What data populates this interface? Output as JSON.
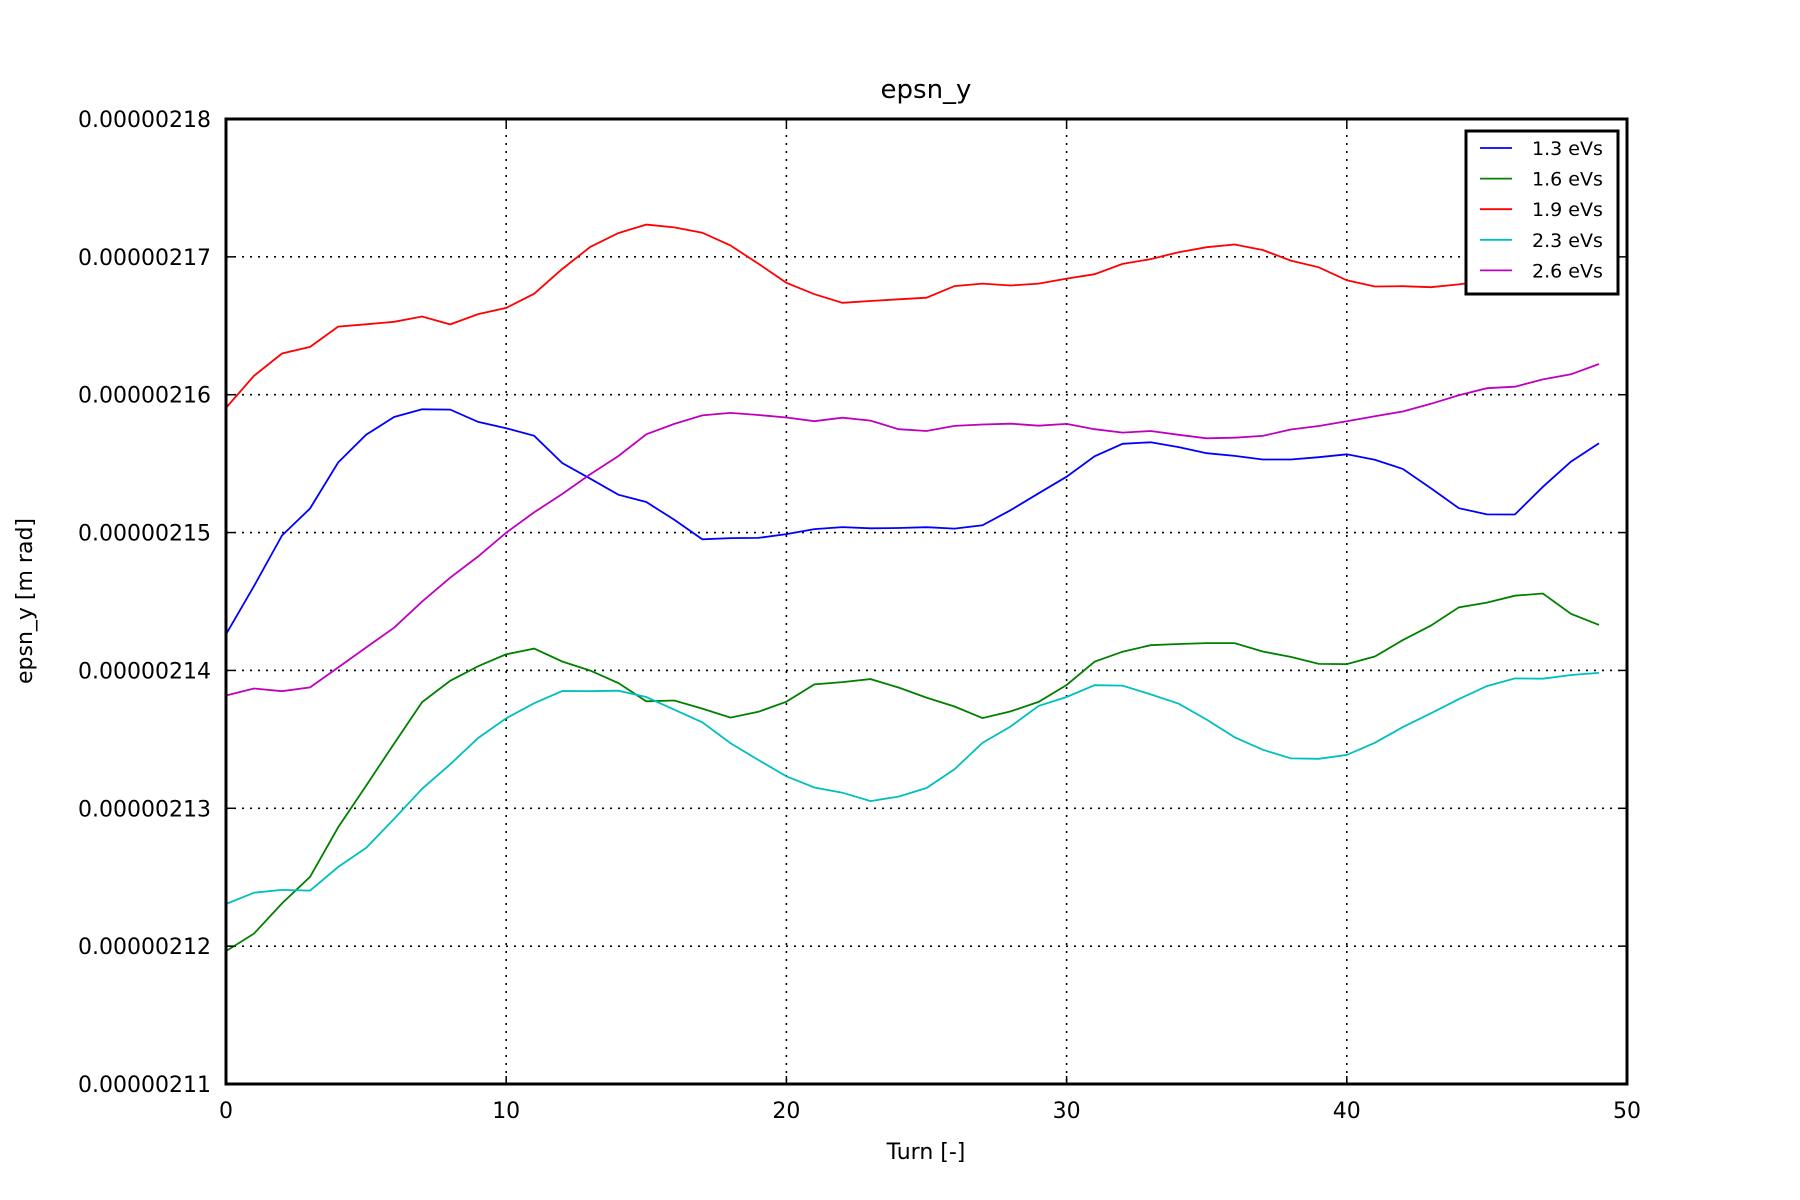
{
  "chart_data": {
    "type": "line",
    "title": "epsn_y",
    "xlabel": "Turn [-]",
    "ylabel": "epsn_y [m rad]",
    "xlim": [
      0,
      50
    ],
    "ylim": [
      2.11e-06,
      2.18e-06
    ],
    "grid": true,
    "legend_position": "top-right",
    "x_ticks": [
      0,
      10,
      20,
      30,
      40,
      50
    ],
    "x_tick_labels": [
      "0",
      "10",
      "20",
      "30",
      "40",
      "50"
    ],
    "y_ticks": [
      2.11e-06,
      2.12e-06,
      2.13e-06,
      2.14e-06,
      2.15e-06,
      2.16e-06,
      2.17e-06,
      2.18e-06
    ],
    "y_tick_labels": [
      "0.00000211",
      "0.00000212",
      "0.00000213",
      "0.00000214",
      "0.00000215",
      "0.00000216",
      "0.00000217",
      "0.00000218"
    ],
    "x": [
      0,
      1,
      2,
      3,
      4,
      5,
      6,
      7,
      8,
      9,
      10,
      11,
      12,
      13,
      14,
      15,
      16,
      17,
      18,
      19,
      20,
      21,
      22,
      23,
      24,
      25,
      26,
      27,
      28,
      29,
      30,
      31,
      32,
      33,
      34,
      35,
      36,
      37,
      38,
      39,
      40,
      41,
      42,
      43,
      44,
      45,
      46,
      47,
      48,
      49
    ],
    "series": [
      {
        "name": "1.3 eVs",
        "color": "#0000ff",
        "values": [
          2.14262e-06,
          2.14612e-06,
          2.14979e-06,
          2.15175e-06,
          2.15508e-06,
          2.1571e-06,
          2.15838e-06,
          2.15894e-06,
          2.15892e-06,
          2.15803e-06,
          2.15757e-06,
          2.15702e-06,
          2.15505e-06,
          2.15391e-06,
          2.15275e-06,
          2.15222e-06,
          2.15093e-06,
          2.14951e-06,
          2.1496e-06,
          2.14961e-06,
          2.14989e-06,
          2.15025e-06,
          2.1504e-06,
          2.15031e-06,
          2.15033e-06,
          2.15039e-06,
          2.15029e-06,
          2.15053e-06,
          2.15162e-06,
          2.15285e-06,
          2.15405e-06,
          2.15553e-06,
          2.15644e-06,
          2.15655e-06,
          2.1562e-06,
          2.15576e-06,
          2.15556e-06,
          2.1553e-06,
          2.1553e-06,
          2.15547e-06,
          2.15568e-06,
          2.15528e-06,
          2.15462e-06,
          2.15321e-06,
          2.15177e-06,
          2.15132e-06,
          2.15131e-06,
          2.15332e-06,
          2.15515e-06,
          2.15648e-06
        ]
      },
      {
        "name": "1.6 eVs",
        "color": "#008000",
        "values": [
          2.11964e-06,
          2.12091e-06,
          2.1231e-06,
          2.12503e-06,
          2.12861e-06,
          2.13164e-06,
          2.13469e-06,
          2.1377e-06,
          2.13925e-06,
          2.14031e-06,
          2.14117e-06,
          2.14158e-06,
          2.14065e-06,
          2.13999e-06,
          2.13909e-06,
          2.13776e-06,
          2.13782e-06,
          2.13723e-06,
          2.13658e-06,
          2.137e-06,
          2.13773e-06,
          2.13899e-06,
          2.13915e-06,
          2.13937e-06,
          2.13876e-06,
          2.13803e-06,
          2.13738e-06,
          2.13654e-06,
          2.13703e-06,
          2.13772e-06,
          2.13894e-06,
          2.14063e-06,
          2.14136e-06,
          2.14183e-06,
          2.14192e-06,
          2.14198e-06,
          2.14198e-06,
          2.14137e-06,
          2.14098e-06,
          2.14047e-06,
          2.14046e-06,
          2.14101e-06,
          2.1422e-06,
          2.14325e-06,
          2.14458e-06,
          2.14492e-06,
          2.14542e-06,
          2.14558e-06,
          2.14411e-06,
          2.1433e-06
        ]
      },
      {
        "name": "1.9 eVs",
        "color": "#ff0000",
        "values": [
          2.15904e-06,
          2.16137e-06,
          2.16299e-06,
          2.16347e-06,
          2.16494e-06,
          2.16511e-06,
          2.16529e-06,
          2.16567e-06,
          2.1651e-06,
          2.16585e-06,
          2.1663e-06,
          2.16733e-06,
          2.16912e-06,
          2.17072e-06,
          2.17172e-06,
          2.17234e-06,
          2.17214e-06,
          2.17175e-06,
          2.17083e-06,
          2.1695e-06,
          2.16812e-06,
          2.16729e-06,
          2.16667e-06,
          2.1668e-06,
          2.16692e-06,
          2.16704e-06,
          2.16788e-06,
          2.16806e-06,
          2.16792e-06,
          2.16806e-06,
          2.16842e-06,
          2.16874e-06,
          2.16949e-06,
          2.16984e-06,
          2.17034e-06,
          2.1707e-06,
          2.1709e-06,
          2.1705e-06,
          2.16973e-06,
          2.16924e-06,
          2.1683e-06,
          2.16785e-06,
          2.16787e-06,
          2.1678e-06,
          2.168e-06,
          2.1683e-06,
          2.1685e-06,
          2.1687e-06,
          2.1688e-06,
          2.169e-06
        ]
      },
      {
        "name": "2.3 eVs",
        "color": "#00bfbf",
        "values": [
          2.12306e-06,
          2.12388e-06,
          2.12408e-06,
          2.12403e-06,
          2.12574e-06,
          2.12713e-06,
          2.12923e-06,
          2.13141e-06,
          2.13319e-06,
          2.1351e-06,
          2.13653e-06,
          2.13762e-06,
          2.13851e-06,
          2.13849e-06,
          2.13853e-06,
          2.13807e-06,
          2.13715e-06,
          2.13624e-06,
          2.13473e-06,
          2.1335e-06,
          2.13232e-06,
          2.13151e-06,
          2.13113e-06,
          2.13052e-06,
          2.13085e-06,
          2.13147e-06,
          2.13283e-06,
          2.13475e-06,
          2.13593e-06,
          2.13743e-06,
          2.13807e-06,
          2.13893e-06,
          2.1389e-06,
          2.13826e-06,
          2.13759e-06,
          2.13643e-06,
          2.13515e-06,
          2.13425e-06,
          2.13362e-06,
          2.13359e-06,
          2.13387e-06,
          2.13475e-06,
          2.13589e-06,
          2.13689e-06,
          2.13792e-06,
          2.13886e-06,
          2.13942e-06,
          2.1394e-06,
          2.13967e-06,
          2.13982e-06
        ]
      },
      {
        "name": "2.6 eVs",
        "color": "#bf00bf",
        "values": [
          2.13818e-06,
          2.13869e-06,
          2.13849e-06,
          2.13877e-06,
          2.14021e-06,
          2.14166e-06,
          2.1431e-06,
          2.14499e-06,
          2.14673e-06,
          2.14827e-06,
          2.14999e-06,
          2.15147e-06,
          2.1528e-06,
          2.15423e-06,
          2.15555e-06,
          2.15713e-06,
          2.15788e-06,
          2.1585e-06,
          2.15868e-06,
          2.15853e-06,
          2.15835e-06,
          2.15808e-06,
          2.15833e-06,
          2.15812e-06,
          2.1575e-06,
          2.15737e-06,
          2.15774e-06,
          2.15784e-06,
          2.1579e-06,
          2.15775e-06,
          2.15788e-06,
          2.1575e-06,
          2.15725e-06,
          2.15737e-06,
          2.15709e-06,
          2.15684e-06,
          2.15688e-06,
          2.15701e-06,
          2.15748e-06,
          2.15773e-06,
          2.15808e-06,
          2.15844e-06,
          2.15878e-06,
          2.15934e-06,
          2.15996e-06,
          2.16047e-06,
          2.16058e-06,
          2.16111e-06,
          2.16148e-06,
          2.16223e-06
        ]
      }
    ]
  }
}
